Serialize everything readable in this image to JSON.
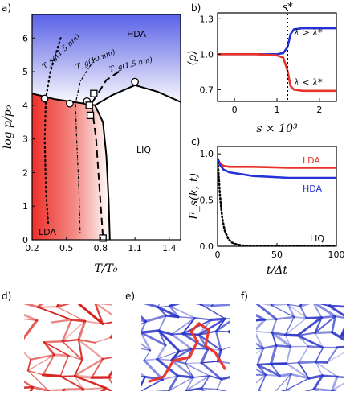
{
  "panels": {
    "a": {
      "label": "a)",
      "xlabel": "T/T₀",
      "ylabel": "log p/p₀",
      "xticks": [
        "0.2",
        "0.5",
        "0.8",
        "1.1",
        "1.4"
      ],
      "yticks": [
        "0",
        "1",
        "2",
        "3",
        "4",
        "5",
        "6"
      ],
      "regions": [
        "HDA",
        "LIQ",
        "LDA"
      ],
      "curve_labels": [
        "T_sg(1.5 nm)",
        "T_g(10 nm)",
        "T_g(1.5 nm)"
      ]
    },
    "b": {
      "label": "b)",
      "ylabel": "⟨ρ⟩",
      "xlabel": "s × 10³",
      "xticks": [
        "0",
        "1",
        "2"
      ],
      "yticks": [
        "0.7",
        "1.0",
        "1.3"
      ],
      "marker_label": "s*",
      "legend": [
        "λ > λ*",
        "λ < λ*"
      ]
    },
    "c": {
      "label": "c)",
      "ylabel": "F_s(k, t)",
      "xlabel": "t/Δt",
      "xticks": [
        "0",
        "50",
        "100"
      ],
      "yticks": [
        "0.0",
        "0.5",
        "1.0"
      ],
      "legend": [
        "LDA",
        "HDA",
        "LIQ"
      ]
    },
    "d": {
      "label": "d)"
    },
    "e": {
      "label": "e)"
    },
    "f": {
      "label": "f)"
    }
  },
  "colors": {
    "red": "#e8322a",
    "blue": "#2432d8",
    "black": "#000000"
  },
  "chart_data": [
    {
      "type": "scatter",
      "panel": "a",
      "xlim": [
        0.2,
        1.5
      ],
      "ylim": [
        0,
        6.7
      ],
      "grid": false,
      "series": [
        {
          "name": "circles",
          "x": [
            0.31,
            0.53,
            0.68,
            1.1
          ],
          "y": [
            4.2,
            4.05,
            4.12,
            4.7
          ]
        },
        {
          "name": "squares",
          "x": [
            0.7,
            0.74,
            0.71,
            0.82
          ],
          "y": [
            4.0,
            4.35,
            3.7,
            0.05
          ]
        },
        {
          "name": "phase_boundary_LDA_HDA",
          "x": [
            0.2,
            0.4,
            0.6,
            0.75
          ],
          "y": [
            4.35,
            4.18,
            4.08,
            4.0
          ]
        },
        {
          "name": "phase_boundary_HDA_LIQ",
          "x": [
            0.75,
            0.9,
            1.1,
            1.3,
            1.5
          ],
          "y": [
            4.0,
            4.3,
            4.6,
            4.4,
            4.1
          ]
        },
        {
          "name": "phase_boundary_LDA_LIQ",
          "x": [
            0.75,
            0.82,
            0.85,
            0.87,
            0.88
          ],
          "y": [
            4.0,
            3.5,
            2.5,
            1.2,
            0.0
          ]
        },
        {
          "name": "T_sg(1.5 nm)",
          "x": [
            0.45,
            0.36,
            0.32,
            0.31,
            0.32,
            0.34
          ],
          "y": [
            6.0,
            5.0,
            4.2,
            3.0,
            1.5,
            0.5
          ]
        },
        {
          "name": "T_g(10 nm)",
          "x": [
            0.75,
            0.62,
            0.58,
            0.59,
            0.61,
            0.62
          ],
          "y": [
            5.4,
            4.7,
            4.05,
            3.0,
            1.5,
            0.2
          ]
        },
        {
          "name": "T_g(1.5 nm)",
          "x": [
            0.96,
            0.85,
            0.72,
            0.76,
            0.79,
            0.82
          ],
          "y": [
            5.0,
            4.75,
            4.05,
            3.0,
            1.5,
            0.1
          ]
        }
      ]
    },
    {
      "type": "line",
      "panel": "b",
      "xlim": [
        -0.4,
        2.4
      ],
      "ylim": [
        0.6,
        1.35
      ],
      "s_star": 1.25,
      "series": [
        {
          "name": "λ > λ*",
          "x": [
            -0.4,
            0.5,
            1.0,
            1.15,
            1.25,
            1.32,
            1.4,
            1.6,
            2.4
          ],
          "y": [
            1.0,
            1.0,
            1.0,
            1.01,
            1.06,
            1.17,
            1.21,
            1.22,
            1.22
          ]
        },
        {
          "name": "λ < λ*",
          "x": [
            -0.4,
            0.5,
            1.0,
            1.15,
            1.25,
            1.32,
            1.4,
            1.6,
            2.4
          ],
          "y": [
            1.0,
            1.0,
            0.99,
            0.97,
            0.86,
            0.73,
            0.7,
            0.69,
            0.69
          ]
        }
      ]
    },
    {
      "type": "line",
      "panel": "c",
      "xlim": [
        0,
        100
      ],
      "ylim": [
        0,
        1.08
      ],
      "series": [
        {
          "name": "LDA",
          "x": [
            0,
            2,
            5,
            10,
            30,
            60,
            100
          ],
          "y": [
            0.95,
            0.9,
            0.87,
            0.86,
            0.86,
            0.85,
            0.85
          ]
        },
        {
          "name": "HDA",
          "x": [
            0,
            2,
            5,
            10,
            30,
            60,
            100
          ],
          "y": [
            0.95,
            0.88,
            0.83,
            0.8,
            0.76,
            0.74,
            0.74
          ]
        },
        {
          "name": "LIQ",
          "x": [
            0,
            1,
            2,
            4,
            6,
            9,
            12,
            16,
            20,
            30,
            100
          ],
          "y": [
            0.95,
            0.75,
            0.55,
            0.3,
            0.17,
            0.08,
            0.04,
            0.02,
            0.01,
            0.0,
            0.0
          ]
        }
      ]
    }
  ]
}
